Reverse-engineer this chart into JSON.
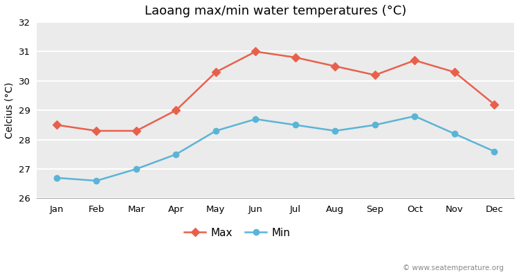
{
  "title": "Laoang max/min water temperatures (°C)",
  "ylabel": "Celcius (°C)",
  "months": [
    "Jan",
    "Feb",
    "Mar",
    "Apr",
    "May",
    "Jun",
    "Jul",
    "Aug",
    "Sep",
    "Oct",
    "Nov",
    "Dec"
  ],
  "max_temps": [
    28.5,
    28.3,
    28.3,
    29.0,
    30.3,
    31.0,
    30.8,
    30.5,
    30.2,
    30.7,
    30.3,
    29.2
  ],
  "min_temps": [
    26.7,
    26.6,
    27.0,
    27.5,
    28.3,
    28.7,
    28.5,
    28.3,
    28.5,
    28.8,
    28.2,
    27.6
  ],
  "max_color": "#e8604c",
  "min_color": "#5ab4d6",
  "fig_bg_color": "#ffffff",
  "plot_bg_color": "#ebebeb",
  "grid_color": "#ffffff",
  "ylim": [
    26,
    32
  ],
  "yticks": [
    26,
    27,
    28,
    29,
    30,
    31,
    32
  ],
  "legend_labels": [
    "Max",
    "Min"
  ],
  "watermark": "© www.seatemperature.org",
  "title_fontsize": 13,
  "label_fontsize": 10,
  "tick_fontsize": 9.5,
  "marker_style_max": "D",
  "marker_style_min": "o",
  "line_width": 1.8,
  "marker_size_max": 6,
  "marker_size_min": 6
}
